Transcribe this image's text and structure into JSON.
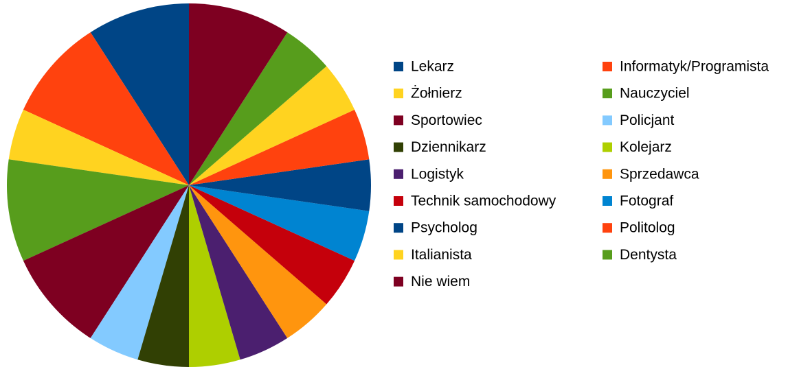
{
  "chart_data": {
    "type": "pie",
    "categories": [
      "Lekarz",
      "Informatyk/Programista",
      "Żołnierz",
      "Nauczyciel",
      "Sportowiec",
      "Policjant",
      "Dziennikarz",
      "Kolejarz",
      "Logistyk",
      "Sprzedawca",
      "Technik samochodowy",
      "Fotograf",
      "Psycholog",
      "Politolog",
      "Italianista",
      "Dentysta",
      "Nie wiem"
    ],
    "values": [
      2,
      2,
      1,
      2,
      2,
      1,
      1,
      1,
      1,
      1,
      1,
      1,
      1,
      1,
      1,
      1,
      2
    ],
    "colors": [
      "#004586",
      "#ff420e",
      "#ffd320",
      "#579d1c",
      "#7e0021",
      "#83caff",
      "#314004",
      "#aecf00",
      "#4b1f6f",
      "#ff950e",
      "#c5000b",
      "#0084d1",
      "#004586",
      "#ff420e",
      "#ffd320",
      "#579d1c",
      "#7e0021"
    ],
    "legend": "right"
  }
}
